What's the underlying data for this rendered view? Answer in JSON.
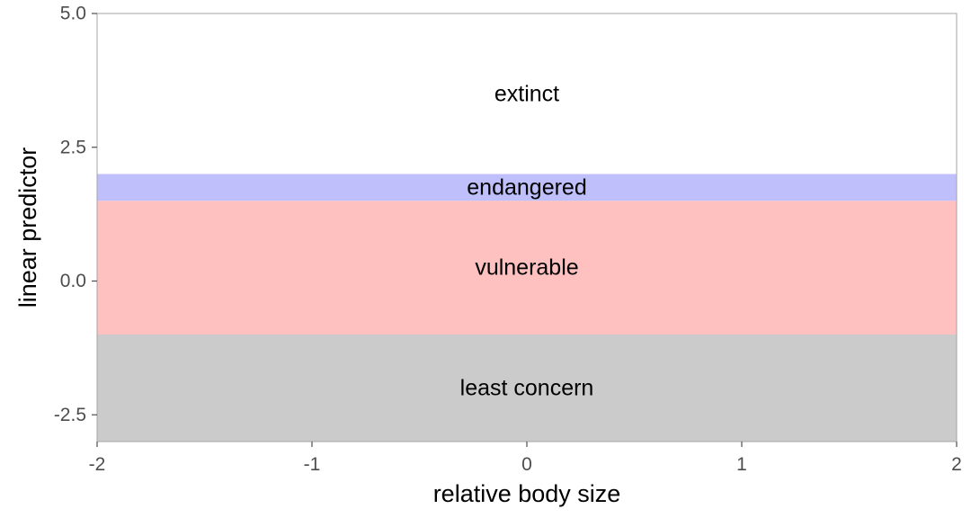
{
  "chart_data": {
    "type": "area",
    "xlabel": "relative body size",
    "ylabel": "linear predictor",
    "xlim": [
      -2,
      2
    ],
    "ylim": [
      -3,
      5
    ],
    "x_ticks": [
      -2,
      -1,
      0,
      1,
      2
    ],
    "x_tick_labels": [
      "-2",
      "-1",
      "0",
      "1",
      "2"
    ],
    "y_ticks": [
      -2.5,
      0,
      2.5,
      5
    ],
    "y_tick_labels": [
      "-2.5",
      "0.0",
      "2.5",
      "5.0"
    ],
    "grid": false,
    "regions": [
      {
        "label": "least concern",
        "y_min": -3,
        "y_max": -1,
        "color": "#cbcbcb"
      },
      {
        "label": "vulnerable",
        "y_min": -1,
        "y_max": 1.5,
        "color": "#ffc0c0"
      },
      {
        "label": "endangered",
        "y_min": 1.5,
        "y_max": 2,
        "color": "#bfbffb"
      },
      {
        "label": "extinct",
        "y_min": 2,
        "y_max": 5,
        "color": "#ffffff"
      }
    ]
  }
}
